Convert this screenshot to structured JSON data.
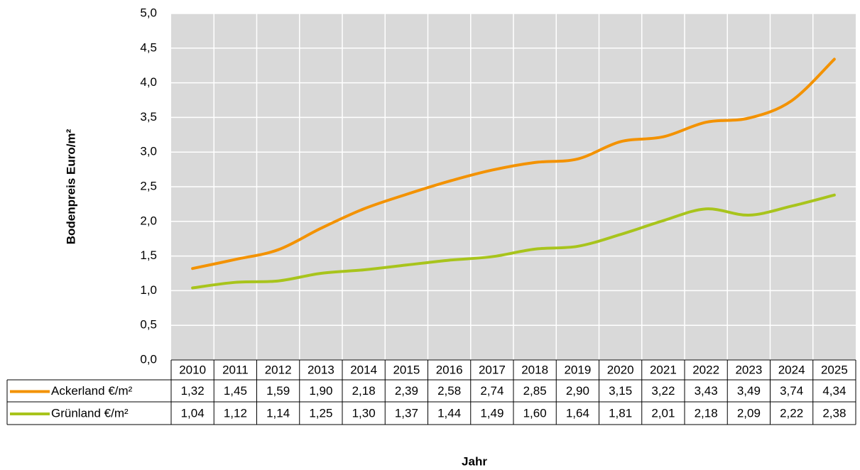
{
  "chart_data": {
    "type": "line",
    "y_label": "Bodenpreis Euro/m²",
    "x_label": "Jahr",
    "categories": [
      "2010",
      "2011",
      "2012",
      "2013",
      "2014",
      "2015",
      "2016",
      "2017",
      "2018",
      "2019",
      "2020",
      "2021",
      "2022",
      "2023",
      "2024",
      "2025"
    ],
    "series": [
      {
        "name": "Ackerland €/m²",
        "color": "#f39200",
        "values": [
          1.32,
          1.45,
          1.59,
          1.9,
          2.18,
          2.39,
          2.58,
          2.74,
          2.85,
          2.9,
          3.15,
          3.22,
          3.43,
          3.49,
          3.74,
          4.34
        ],
        "value_labels": [
          "1,32",
          "1,45",
          "1,59",
          "1,90",
          "2,18",
          "2,39",
          "2,58",
          "2,74",
          "2,85",
          "2,90",
          "3,15",
          "3,22",
          "3,43",
          "3,49",
          "3,74",
          "4,34"
        ]
      },
      {
        "name": "Grünland €/m²",
        "color": "#a8c41c",
        "values": [
          1.04,
          1.12,
          1.14,
          1.25,
          1.3,
          1.37,
          1.44,
          1.49,
          1.6,
          1.64,
          1.81,
          2.01,
          2.18,
          2.09,
          2.22,
          2.38
        ],
        "value_labels": [
          "1,04",
          "1,12",
          "1,14",
          "1,25",
          "1,30",
          "1,37",
          "1,44",
          "1,49",
          "1,60",
          "1,64",
          "1,81",
          "2,01",
          "2,18",
          "2,09",
          "2,22",
          "2,38"
        ]
      }
    ],
    "ylim": [
      0,
      5
    ],
    "yticks": [
      {
        "value": 0,
        "label": "0,0"
      },
      {
        "value": 0.5,
        "label": "0,5"
      },
      {
        "value": 1,
        "label": "1,0"
      },
      {
        "value": 1.5,
        "label": "1,5"
      },
      {
        "value": 2,
        "label": "2,0"
      },
      {
        "value": 2.5,
        "label": "2,5"
      },
      {
        "value": 3,
        "label": "3,0"
      },
      {
        "value": 3.5,
        "label": "3,5"
      },
      {
        "value": 4,
        "label": "4,0"
      },
      {
        "value": 4.5,
        "label": "4,5"
      },
      {
        "value": 5,
        "label": "5,0"
      }
    ],
    "grid": true,
    "smooth": true
  }
}
